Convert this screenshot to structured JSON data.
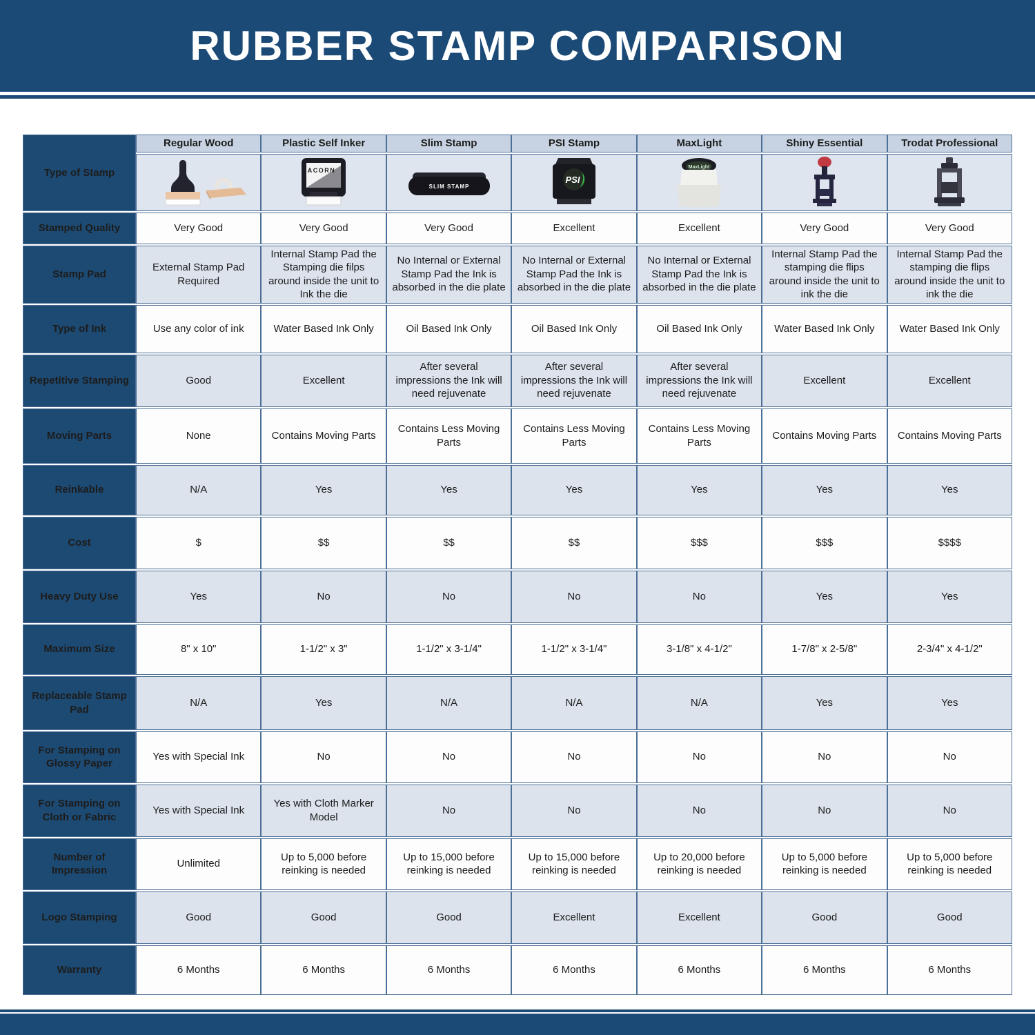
{
  "banner": {
    "title": "RUBBER STAMP COMPARISON"
  },
  "colors": {
    "navy_band": "#1b4a77",
    "row_label_navy": "#1d4a73",
    "column_header_strip": "#c7d3e2",
    "tint_row": "#dce3ed",
    "white_row": "#fdfdfd",
    "cell_border": "#4c6f96",
    "banner_text": "#ffffff",
    "psi_logo_green": "#39b54a",
    "shiny_knob_red": "#c13a42"
  },
  "table": {
    "corner_label": "Type of Stamp",
    "columns": [
      "Regular Wood",
      "Plastic Self Inker",
      "Slim Stamp",
      "PSI Stamp",
      "MaxLight",
      "Shiny Essential",
      "Trodat Professional"
    ],
    "stamp_images": [
      {
        "icon": "regular-wood-stamp-icon",
        "label": ""
      },
      {
        "icon": "plastic-self-inker-stamp-icon",
        "label": "ACORN"
      },
      {
        "icon": "slim-stamp-icon",
        "label": "SLIM STAMP"
      },
      {
        "icon": "psi-stamp-icon",
        "label": "PSI"
      },
      {
        "icon": "maxlight-stamp-icon",
        "label": "MaxLight"
      },
      {
        "icon": "shiny-essential-stamp-icon",
        "label": ""
      },
      {
        "icon": "trodat-professional-stamp-icon",
        "label": ""
      }
    ],
    "rows": [
      {
        "label": "Stamped Quality",
        "values": [
          "Very Good",
          "Very Good",
          "Very Good",
          "Excellent",
          "Excellent",
          "Very Good",
          "Very Good"
        ]
      },
      {
        "label": "Stamp Pad",
        "values": [
          "External Stamp Pad Required",
          "Internal Stamp Pad the Stamping die filps around inside the unit to Ink the die",
          "No Internal or External Stamp Pad the Ink is absorbed in the die plate",
          "No Internal or External Stamp Pad the Ink is absorbed in the die plate",
          "No Internal or External Stamp Pad the Ink is absorbed in the die plate",
          "Internal Stamp Pad the stamping die flips around inside the unit to ink the die",
          "Internal Stamp Pad the stamping die flips around inside the unit to ink the die"
        ]
      },
      {
        "label": "Type of Ink",
        "values": [
          "Use any color of ink",
          "Water Based Ink Only",
          "Oil Based Ink Only",
          "Oil Based Ink Only",
          "Oil Based Ink Only",
          "Water Based Ink Only",
          "Water Based Ink Only"
        ]
      },
      {
        "label": "Repetitive Stamping",
        "values": [
          "Good",
          "Excellent",
          "After several impressions the Ink will need rejuvenate",
          "After several impressions the Ink will need rejuvenate",
          "After several impressions the Ink will need rejuvenate",
          "Excellent",
          "Excellent"
        ]
      },
      {
        "label": "Moving Parts",
        "values": [
          "None",
          "Contains Moving Parts",
          "Contains Less Moving Parts",
          "Contains Less Moving Parts",
          "Contains Less Moving Parts",
          "Contains Moving Parts",
          "Contains Moving Parts"
        ]
      },
      {
        "label": "Reinkable",
        "values": [
          "N/A",
          "Yes",
          "Yes",
          "Yes",
          "Yes",
          "Yes",
          "Yes"
        ]
      },
      {
        "label": "Cost",
        "values": [
          "$",
          "$$",
          "$$",
          "$$",
          "$$$",
          "$$$",
          "$$$$"
        ]
      },
      {
        "label": "Heavy Duty Use",
        "values": [
          "Yes",
          "No",
          "No",
          "No",
          "No",
          "Yes",
          "Yes"
        ]
      },
      {
        "label": "Maximum Size",
        "values": [
          "8\" x 10\"",
          "1-1/2\" x 3\"",
          "1-1/2\" x 3-1/4\"",
          "1-1/2\" x 3-1/4\"",
          "3-1/8\" x 4-1/2\"",
          "1-7/8\" x 2-5/8\"",
          "2-3/4\" x 4-1/2\""
        ]
      },
      {
        "label": "Replaceable Stamp Pad",
        "values": [
          "N/A",
          "Yes",
          "N/A",
          "N/A",
          "N/A",
          "Yes",
          "Yes"
        ]
      },
      {
        "label": "For Stamping on Glossy Paper",
        "values": [
          "Yes with Special Ink",
          "No",
          "No",
          "No",
          "No",
          "No",
          "No"
        ]
      },
      {
        "label": "For Stamping on Cloth or Fabric",
        "values": [
          "Yes with Special Ink",
          "Yes with Cloth Marker Model",
          "No",
          "No",
          "No",
          "No",
          "No"
        ]
      },
      {
        "label": "Number of Impression",
        "values": [
          "Unlimited",
          "Up to 5,000 before reinking is needed",
          "Up to 15,000 before reinking is needed",
          "Up to 15,000 before reinking is needed",
          "Up to 20,000 before reinking is needed",
          "Up to 5,000 before reinking is needed",
          "Up to 5,000 before reinking is needed"
        ]
      },
      {
        "label": "Logo Stamping",
        "values": [
          "Good",
          "Good",
          "Good",
          "Excellent",
          "Excellent",
          "Good",
          "Good"
        ]
      },
      {
        "label": "Warranty",
        "values": [
          "6 Months",
          "6 Months",
          "6 Months",
          "6 Months",
          "6 Months",
          "6 Months",
          "6 Months"
        ]
      }
    ]
  }
}
